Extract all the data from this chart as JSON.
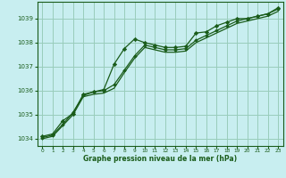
{
  "title": "Graphe pression niveau de la mer (hPa)",
  "background_color": "#c8eef0",
  "grid_color": "#99ccbb",
  "line_color": "#1a5c1a",
  "marker_color": "#1a5c1a",
  "xlim": [
    -0.5,
    23.5
  ],
  "ylim": [
    1033.7,
    1039.7
  ],
  "yticks": [
    1034,
    1035,
    1036,
    1037,
    1038,
    1039
  ],
  "xticks": [
    0,
    1,
    2,
    3,
    4,
    5,
    6,
    7,
    8,
    9,
    10,
    11,
    12,
    13,
    14,
    15,
    16,
    17,
    18,
    19,
    20,
    21,
    22,
    23
  ],
  "series1_x": [
    0,
    1,
    2,
    3,
    4,
    5,
    6,
    7,
    8,
    9,
    10,
    11,
    12,
    13,
    14,
    15,
    16,
    17,
    18,
    19,
    20,
    21,
    22,
    23
  ],
  "series1_y": [
    1034.1,
    1034.2,
    1034.75,
    1035.05,
    1035.85,
    1035.95,
    1036.05,
    1037.1,
    1037.75,
    1038.15,
    1038.0,
    1037.9,
    1037.8,
    1037.8,
    1037.85,
    1038.4,
    1038.45,
    1038.7,
    1038.85,
    1039.0,
    1039.0,
    1039.1,
    1039.2,
    1039.45
  ],
  "series2_x": [
    0,
    1,
    2,
    3,
    4,
    5,
    6,
    7,
    8,
    9,
    10,
    11,
    12,
    13,
    14,
    15,
    16,
    17,
    18,
    19,
    20,
    21,
    22,
    23
  ],
  "series2_y": [
    1034.05,
    1034.15,
    1034.6,
    1035.1,
    1035.8,
    1035.95,
    1036.0,
    1036.25,
    1036.85,
    1037.45,
    1037.9,
    1037.8,
    1037.7,
    1037.7,
    1037.75,
    1038.1,
    1038.3,
    1038.5,
    1038.7,
    1038.9,
    1039.0,
    1039.1,
    1039.2,
    1039.4
  ],
  "series3_x": [
    0,
    1,
    2,
    3,
    4,
    5,
    6,
    7,
    8,
    9,
    10,
    11,
    12,
    13,
    14,
    15,
    16,
    17,
    18,
    19,
    20,
    21,
    22,
    23
  ],
  "series3_y": [
    1034.0,
    1034.1,
    1034.55,
    1035.0,
    1035.75,
    1035.85,
    1035.9,
    1036.1,
    1036.75,
    1037.35,
    1037.8,
    1037.7,
    1037.6,
    1037.6,
    1037.65,
    1038.0,
    1038.2,
    1038.4,
    1038.6,
    1038.8,
    1038.9,
    1039.0,
    1039.1,
    1039.3
  ]
}
